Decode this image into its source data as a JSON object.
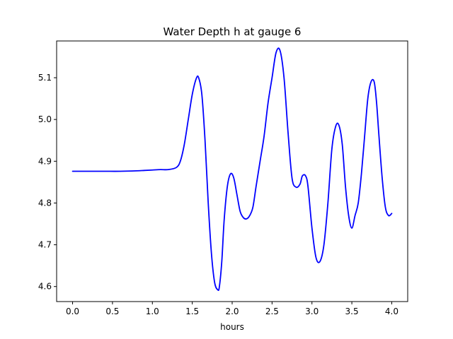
{
  "chart_data": {
    "type": "line",
    "title": "Water Depth h at gauge 6",
    "xlabel": "hours",
    "ylabel": "",
    "xlim": [
      -0.2,
      4.2
    ],
    "ylim": [
      4.564,
      5.188
    ],
    "grid": false,
    "xticks": [
      0.0,
      0.5,
      1.0,
      1.5,
      2.0,
      2.5,
      3.0,
      3.5,
      4.0
    ],
    "xtick_labels": [
      "0.0",
      "0.5",
      "1.0",
      "1.5",
      "2.0",
      "2.5",
      "3.0",
      "3.5",
      "4.0"
    ],
    "yticks": [
      4.6,
      4.7,
      4.8,
      4.9,
      5.0,
      5.1
    ],
    "ytick_labels": [
      "4.6",
      "4.7",
      "4.8",
      "4.9",
      "5.0",
      "5.1"
    ],
    "series": [
      {
        "color": "#0000ff",
        "x": [
          0.0,
          0.2,
          0.4,
          0.6,
          0.8,
          0.9,
          1.0,
          1.1,
          1.2,
          1.3,
          1.35,
          1.4,
          1.45,
          1.5,
          1.55,
          1.58,
          1.62,
          1.66,
          1.7,
          1.74,
          1.78,
          1.82,
          1.84,
          1.87,
          1.9,
          1.94,
          1.98,
          2.02,
          2.06,
          2.1,
          2.14,
          2.18,
          2.22,
          2.26,
          2.3,
          2.35,
          2.4,
          2.45,
          2.5,
          2.55,
          2.6,
          2.65,
          2.7,
          2.75,
          2.8,
          2.85,
          2.88,
          2.92,
          2.95,
          3.0,
          3.05,
          3.1,
          3.15,
          3.2,
          3.25,
          3.3,
          3.34,
          3.38,
          3.42,
          3.46,
          3.5,
          3.54,
          3.58,
          3.62,
          3.66,
          3.7,
          3.74,
          3.78,
          3.81,
          3.84,
          3.88,
          3.92,
          3.96,
          4.0
        ],
        "y": [
          4.876,
          4.876,
          4.876,
          4.876,
          4.877,
          4.878,
          4.879,
          4.88,
          4.88,
          4.885,
          4.9,
          4.94,
          5.0,
          5.06,
          5.098,
          5.1,
          5.06,
          4.95,
          4.8,
          4.68,
          4.61,
          4.592,
          4.6,
          4.66,
          4.76,
          4.84,
          4.87,
          4.86,
          4.82,
          4.78,
          4.765,
          4.762,
          4.77,
          4.79,
          4.84,
          4.9,
          4.96,
          5.04,
          5.1,
          5.16,
          5.165,
          5.1,
          4.97,
          4.86,
          4.838,
          4.845,
          4.865,
          4.865,
          4.84,
          4.74,
          4.67,
          4.66,
          4.7,
          4.8,
          4.93,
          4.985,
          4.985,
          4.94,
          4.84,
          4.77,
          4.74,
          4.77,
          4.8,
          4.87,
          4.96,
          5.05,
          5.09,
          5.09,
          5.04,
          4.96,
          4.86,
          4.79,
          4.77,
          4.775
        ]
      }
    ]
  }
}
